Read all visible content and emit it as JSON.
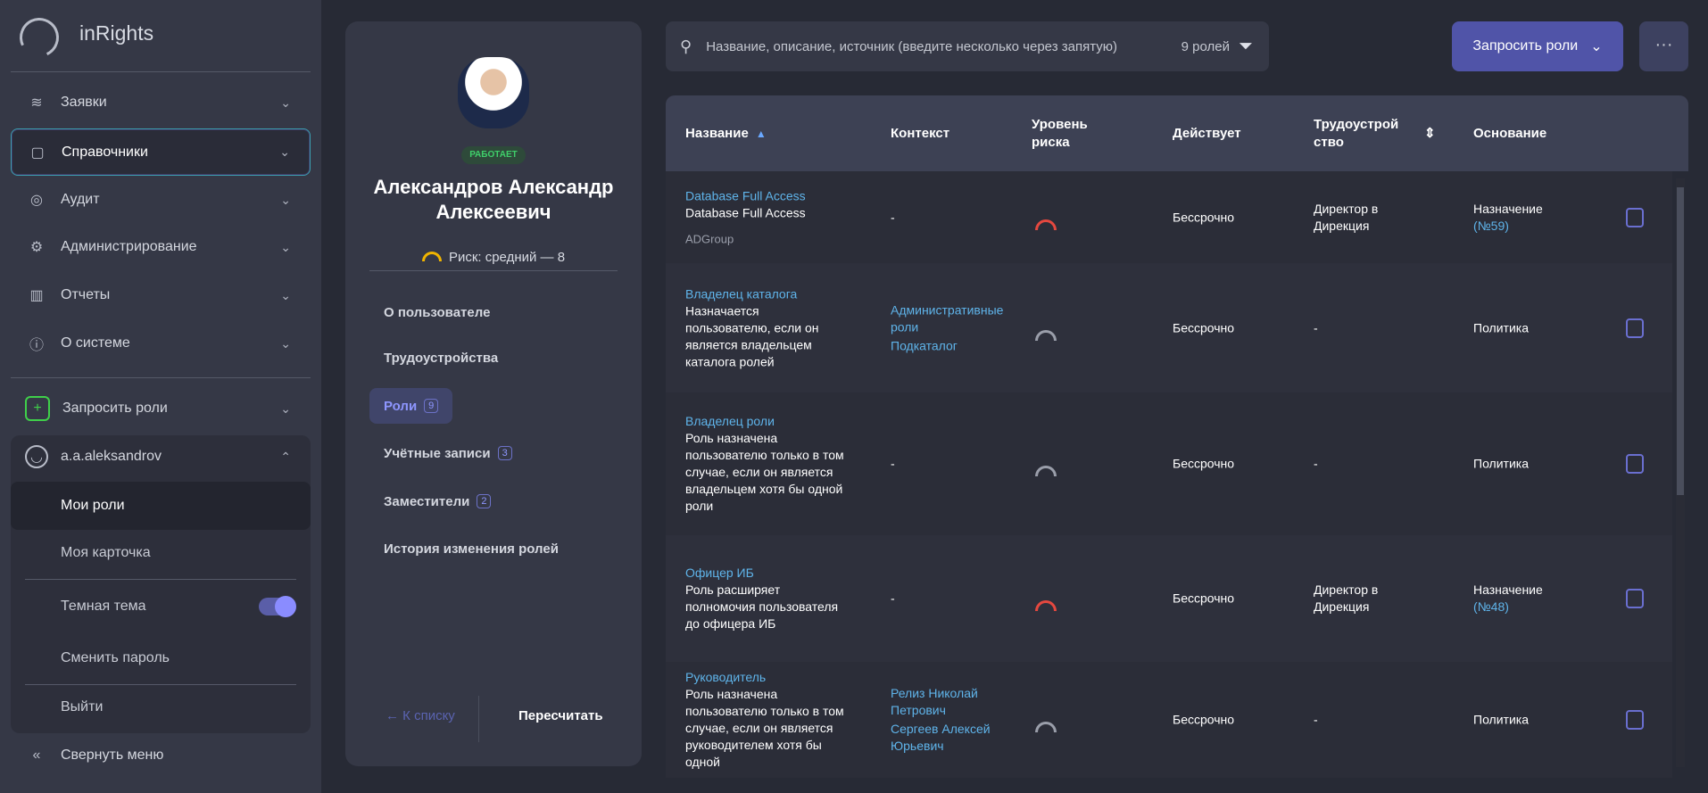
{
  "app": {
    "title": "inRights"
  },
  "sidebar": {
    "items": [
      {
        "label": "Заявки",
        "icon": "layers-icon"
      },
      {
        "label": "Справочники",
        "icon": "document-icon"
      },
      {
        "label": "Аудит",
        "icon": "eye-icon"
      },
      {
        "label": "Администрирование",
        "icon": "gear-icon"
      },
      {
        "label": "Отчеты",
        "icon": "bar-chart-icon"
      },
      {
        "label": "О системе",
        "icon": "info-icon"
      }
    ],
    "request_roles": "Запросить роли",
    "user": "a.a.aleksandrov",
    "user_menu": {
      "my_roles": "Мои роли",
      "my_card": "Моя карточка",
      "dark_theme": "Темная тема",
      "dark_theme_on": true,
      "change_password": "Сменить пароль",
      "logout": "Выйти"
    },
    "collapse": "Свернуть меню"
  },
  "profile": {
    "status": "РАБОТАЕТ",
    "name": "Александров Александр Алексеевич",
    "risk": "Риск: средний — 8",
    "menu": [
      {
        "label": "О пользователе"
      },
      {
        "label": "Трудоустройства"
      },
      {
        "label": "Роли",
        "count": "9"
      },
      {
        "label": "Учётные записи",
        "count": "3"
      },
      {
        "label": "Заместители",
        "count": "2"
      },
      {
        "label": "История изменения ролей"
      }
    ],
    "back": "← К списку",
    "recalc": "Пересчитать"
  },
  "toolbar": {
    "search_placeholder": "Название, описание, источник (введите несколько через запятую)",
    "count": "9 ролей",
    "request_button": "Запросить роли",
    "more": "···"
  },
  "table": {
    "columns": [
      "Название",
      "Контекст",
      "Уровень риска",
      "Действует",
      "Трудоустройство",
      "Основание"
    ],
    "rows": [
      {
        "name": "Database Full Access",
        "desc": "Database Full Access",
        "source": "ADGroup",
        "context": [
          "-"
        ],
        "context_link": false,
        "risk": "high",
        "valid": "Бессрочно",
        "employment": "Директор в Дирекция",
        "basis": "Назначение",
        "basis_ref": "(№59)"
      },
      {
        "name": "Владелец каталога",
        "desc": "Назначается пользователю, если он является владельцем каталога ролей",
        "context": [
          "Административные роли",
          "Подкаталог"
        ],
        "context_link": true,
        "risk": "low",
        "valid": "Бессрочно",
        "employment": "-",
        "basis": "Политика"
      },
      {
        "name": "Владелец роли",
        "desc": "Роль назначена пользователю только в том случае, если он является владельцем хотя бы одной роли",
        "context": [
          "-"
        ],
        "context_link": false,
        "risk": "low",
        "valid": "Бессрочно",
        "employment": "-",
        "basis": "Политика"
      },
      {
        "name": "Офицер ИБ",
        "desc": "Роль расширяет полномочия пользователя до офицера ИБ",
        "context": [
          "-"
        ],
        "context_link": false,
        "risk": "high",
        "valid": "Бессрочно",
        "employment": "Директор в Дирекция",
        "basis": "Назначение",
        "basis_ref": "(№48)"
      },
      {
        "name": "Руководитель",
        "desc": "Роль назначена пользователю только в том случае, если он является руководителем хотя бы одной",
        "context": [
          "Релиз Николай Петрович",
          "Сергеев Алексей Юрьевич"
        ],
        "context_link": true,
        "risk": "low",
        "valid": "Бессрочно",
        "employment": "-",
        "basis": "Политика"
      }
    ]
  },
  "colors": {
    "accent": "#5054a8",
    "link": "#5fb4ea",
    "risk_high": "#e5483f",
    "risk_low": "#9a9eaa",
    "status": "#3fcf6a"
  }
}
